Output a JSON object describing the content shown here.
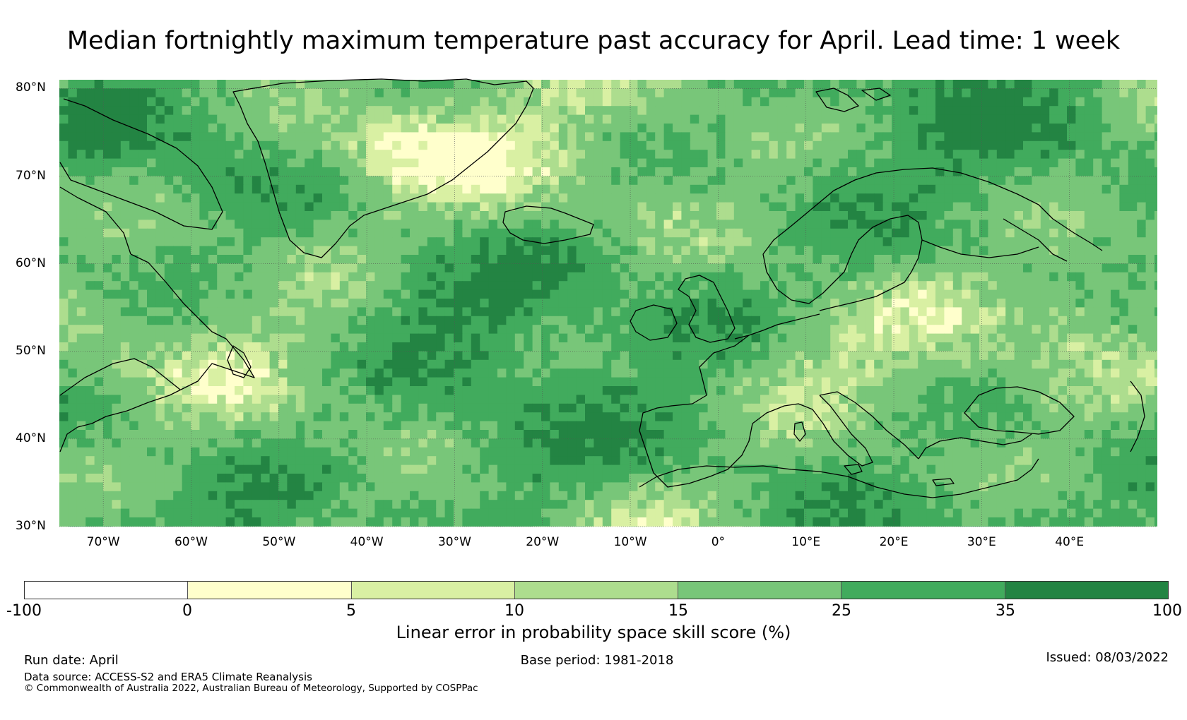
{
  "title": "Median fortnightly maximum temperature past accuracy for April. Lead time: 1 week",
  "map": {
    "lat_labels": [
      "80°N",
      "70°N",
      "60°N",
      "50°N",
      "40°N",
      "30°N"
    ],
    "lon_labels": [
      "70°W",
      "60°W",
      "50°W",
      "40°W",
      "30°W",
      "20°W",
      "10°W",
      "0°",
      "10°E",
      "20°E",
      "30°E",
      "40°E"
    ],
    "extent": {
      "lon_min": -75,
      "lon_max": 50,
      "lat_min": 30,
      "lat_max": 81
    },
    "gridlines": true
  },
  "colorbar": {
    "label": "Linear error in probability space skill score (%)",
    "ticks": [
      "-100",
      "0",
      "5",
      "10",
      "15",
      "25",
      "35",
      "100"
    ],
    "colors": [
      "#ffffff",
      "#ffffcc",
      "#d9f0a3",
      "#addd8e",
      "#78c679",
      "#41ab5d",
      "#238443"
    ]
  },
  "footer": {
    "run_date": "Run date: April",
    "base_period": "Base period: 1981-2018",
    "issued": "Issued: 08/03/2022",
    "data_source": "Data source: ACCESS-S2 and ERA5 Climate Reanalysis",
    "copyright": "© Commonwealth of Australia 2022, Australian Bureau of Meteorology, Supported by COSPPac"
  }
}
